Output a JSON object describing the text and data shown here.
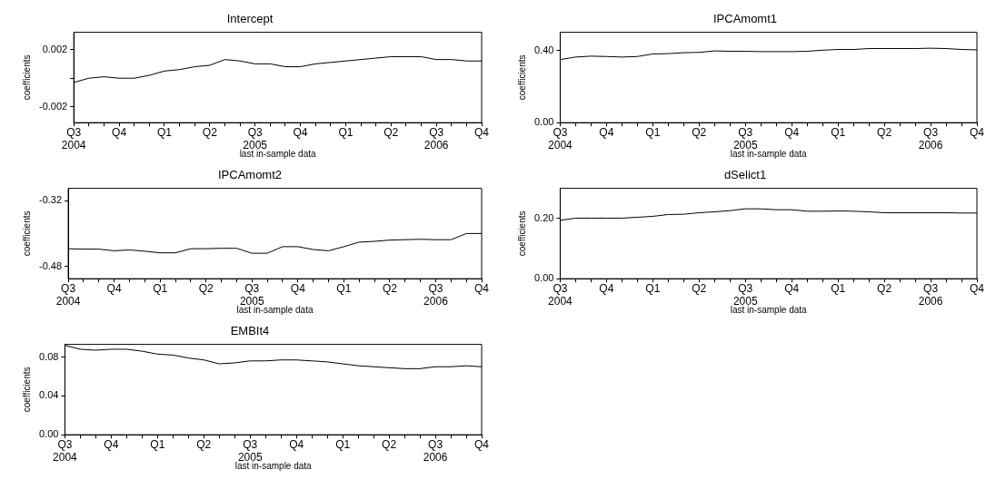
{
  "chart_data": [
    {
      "type": "line",
      "title": "Intercept",
      "xlabel": "last in-sample data",
      "ylabel": "coefficients",
      "color": "#000000",
      "grid": false,
      "x": [
        "2004-07",
        "2004-08",
        "2004-09",
        "2004-10",
        "2004-11",
        "2004-12",
        "2005-01",
        "2005-02",
        "2005-03",
        "2005-04",
        "2005-05",
        "2005-06",
        "2005-07",
        "2005-08",
        "2005-09",
        "2005-10",
        "2005-11",
        "2005-12",
        "2006-01",
        "2006-02",
        "2006-03",
        "2006-04",
        "2006-05",
        "2006-06",
        "2006-07",
        "2006-08",
        "2006-09",
        "2006-10"
      ],
      "values": [
        -0.0003,
        0.0,
        0.0001,
        0.0,
        0.0,
        0.0002,
        0.0005,
        0.0006,
        0.0008,
        0.0009,
        0.0013,
        0.0012,
        0.001,
        0.001,
        0.0008,
        0.0008,
        0.001,
        0.0011,
        0.0012,
        0.0013,
        0.0014,
        0.0015,
        0.0015,
        0.0015,
        0.0013,
        0.0013,
        0.0012,
        0.0012
      ],
      "xlim": [
        "2004-07",
        "2006-10"
      ],
      "ylim": [
        -0.0031,
        0.0032
      ],
      "yticks": [
        -0.002,
        {
          "value": 0,
          "label": null
        },
        0.002
      ],
      "xticks": [
        {
          "value": "2004-07",
          "label": "Q3\n2004"
        },
        {
          "value": "2004-08",
          "label": null
        },
        {
          "value": "2004-09",
          "label": null
        },
        {
          "value": "2004-10",
          "label": "Q4"
        },
        {
          "value": "2004-11",
          "label": null
        },
        {
          "value": "2004-12",
          "label": null
        },
        {
          "value": "2005-01",
          "label": "Q1"
        },
        {
          "value": "2005-02",
          "label": null
        },
        {
          "value": "2005-03",
          "label": null
        },
        {
          "value": "2005-04",
          "label": "Q2"
        },
        {
          "value": "2005-05",
          "label": null
        },
        {
          "value": "2005-06",
          "label": null
        },
        {
          "value": "2005-07",
          "label": "Q3\n2005"
        },
        {
          "value": "2005-08",
          "label": null
        },
        {
          "value": "2005-09",
          "label": null
        },
        {
          "value": "2005-10",
          "label": "Q4"
        },
        {
          "value": "2005-11",
          "label": null
        },
        {
          "value": "2005-12",
          "label": null
        },
        {
          "value": "2006-01",
          "label": "Q1"
        },
        {
          "value": "2006-02",
          "label": null
        },
        {
          "value": "2006-03",
          "label": null
        },
        {
          "value": "2006-04",
          "label": "Q2"
        },
        {
          "value": "2006-05",
          "label": null
        },
        {
          "value": "2006-06",
          "label": null
        },
        {
          "value": "2006-07",
          "label": "Q3\n2006"
        },
        {
          "value": "2006-08",
          "label": null
        },
        {
          "value": "2006-09",
          "label": null
        },
        {
          "value": "2006-10",
          "label": "Q4"
        }
      ]
    },
    {
      "type": "line",
      "title": "IPCAmomt1",
      "xlabel": "last in-sample data",
      "ylabel": "coefficients",
      "color": "#000000",
      "grid": false,
      "x": [
        "2004-07",
        "2004-08",
        "2004-09",
        "2004-10",
        "2004-11",
        "2004-12",
        "2005-01",
        "2005-02",
        "2005-03",
        "2005-04",
        "2005-05",
        "2005-06",
        "2005-07",
        "2005-08",
        "2005-09",
        "2005-10",
        "2005-11",
        "2005-12",
        "2006-01",
        "2006-02",
        "2006-03",
        "2006-04",
        "2006-05",
        "2006-06",
        "2006-07",
        "2006-08",
        "2006-09",
        "2006-10"
      ],
      "values": [
        0.349,
        0.363,
        0.368,
        0.366,
        0.363,
        0.366,
        0.38,
        0.382,
        0.387,
        0.389,
        0.397,
        0.395,
        0.395,
        0.393,
        0.393,
        0.393,
        0.395,
        0.401,
        0.405,
        0.405,
        0.41,
        0.41,
        0.41,
        0.41,
        0.412,
        0.41,
        0.405,
        0.403
      ],
      "xlim": [
        "2004-07",
        "2006-10"
      ],
      "ylim": [
        0,
        0.5
      ],
      "yticks": [
        {
          "value": 0,
          "label": "0.00"
        },
        {
          "value": 0.4,
          "label": "0.40"
        }
      ],
      "xticks": [
        {
          "value": "2004-07",
          "label": "Q3\n2004"
        },
        {
          "value": "2004-08",
          "label": null
        },
        {
          "value": "2004-09",
          "label": null
        },
        {
          "value": "2004-10",
          "label": "Q4"
        },
        {
          "value": "2004-11",
          "label": null
        },
        {
          "value": "2004-12",
          "label": null
        },
        {
          "value": "2005-01",
          "label": "Q1"
        },
        {
          "value": "2005-02",
          "label": null
        },
        {
          "value": "2005-03",
          "label": null
        },
        {
          "value": "2005-04",
          "label": "Q2"
        },
        {
          "value": "2005-05",
          "label": null
        },
        {
          "value": "2005-06",
          "label": null
        },
        {
          "value": "2005-07",
          "label": "Q3\n2005"
        },
        {
          "value": "2005-08",
          "label": null
        },
        {
          "value": "2005-09",
          "label": null
        },
        {
          "value": "2005-10",
          "label": "Q4"
        },
        {
          "value": "2005-11",
          "label": null
        },
        {
          "value": "2005-12",
          "label": null
        },
        {
          "value": "2006-01",
          "label": "Q1"
        },
        {
          "value": "2006-02",
          "label": null
        },
        {
          "value": "2006-03",
          "label": null
        },
        {
          "value": "2006-04",
          "label": "Q2"
        },
        {
          "value": "2006-05",
          "label": null
        },
        {
          "value": "2006-06",
          "label": null
        },
        {
          "value": "2006-07",
          "label": "Q3\n2006"
        },
        {
          "value": "2006-08",
          "label": null
        },
        {
          "value": "2006-09",
          "label": null
        },
        {
          "value": "2006-10",
          "label": "Q4"
        }
      ]
    },
    {
      "type": "line",
      "title": "IPCAmomt2",
      "xlabel": "last in-sample data",
      "ylabel": "coefficients",
      "color": "#000000",
      "grid": false,
      "x": [
        "2004-07",
        "2004-08",
        "2004-09",
        "2004-10",
        "2004-11",
        "2004-12",
        "2005-01",
        "2005-02",
        "2005-03",
        "2005-04",
        "2005-05",
        "2005-06",
        "2005-07",
        "2005-08",
        "2005-09",
        "2005-10",
        "2005-11",
        "2005-12",
        "2006-01",
        "2006-02",
        "2006-03",
        "2006-04",
        "2006-05",
        "2006-06",
        "2006-07",
        "2006-08",
        "2006-09",
        "2006-10"
      ],
      "values": [
        -0.437,
        -0.438,
        -0.438,
        -0.442,
        -0.44,
        -0.443,
        -0.447,
        -0.447,
        -0.437,
        -0.437,
        -0.436,
        -0.436,
        -0.448,
        -0.448,
        -0.432,
        -0.432,
        -0.439,
        -0.442,
        -0.432,
        -0.421,
        -0.419,
        -0.416,
        -0.415,
        -0.414,
        -0.415,
        -0.415,
        -0.4,
        -0.4
      ],
      "xlim": [
        "2004-07",
        "2006-10"
      ],
      "ylim": [
        -0.51,
        -0.29
      ],
      "yticks": [
        -0.48,
        -0.32
      ],
      "xticks": [
        {
          "value": "2004-07",
          "label": "Q3\n2004"
        },
        {
          "value": "2004-08",
          "label": null
        },
        {
          "value": "2004-09",
          "label": null
        },
        {
          "value": "2004-10",
          "label": "Q4"
        },
        {
          "value": "2004-11",
          "label": null
        },
        {
          "value": "2004-12",
          "label": null
        },
        {
          "value": "2005-01",
          "label": "Q1"
        },
        {
          "value": "2005-02",
          "label": null
        },
        {
          "value": "2005-03",
          "label": null
        },
        {
          "value": "2005-04",
          "label": "Q2"
        },
        {
          "value": "2005-05",
          "label": null
        },
        {
          "value": "2005-06",
          "label": null
        },
        {
          "value": "2005-07",
          "label": "Q3\n2005"
        },
        {
          "value": "2005-08",
          "label": null
        },
        {
          "value": "2005-09",
          "label": null
        },
        {
          "value": "2005-10",
          "label": "Q4"
        },
        {
          "value": "2005-11",
          "label": null
        },
        {
          "value": "2005-12",
          "label": null
        },
        {
          "value": "2006-01",
          "label": "Q1"
        },
        {
          "value": "2006-02",
          "label": null
        },
        {
          "value": "2006-03",
          "label": null
        },
        {
          "value": "2006-04",
          "label": "Q2"
        },
        {
          "value": "2006-05",
          "label": null
        },
        {
          "value": "2006-06",
          "label": null
        },
        {
          "value": "2006-07",
          "label": "Q3\n2006"
        },
        {
          "value": "2006-08",
          "label": null
        },
        {
          "value": "2006-09",
          "label": null
        },
        {
          "value": "2006-10",
          "label": "Q4"
        }
      ]
    },
    {
      "type": "line",
      "title": "dSelict1",
      "xlabel": "last in-sample data",
      "ylabel": "coefficients",
      "color": "#000000",
      "grid": false,
      "x": [
        "2004-07",
        "2004-08",
        "2004-09",
        "2004-10",
        "2004-11",
        "2004-12",
        "2005-01",
        "2005-02",
        "2005-03",
        "2005-04",
        "2005-05",
        "2005-06",
        "2005-07",
        "2005-08",
        "2005-09",
        "2005-10",
        "2005-11",
        "2005-12",
        "2006-01",
        "2006-02",
        "2006-03",
        "2006-04",
        "2006-05",
        "2006-06",
        "2006-07",
        "2006-08",
        "2006-09",
        "2006-10"
      ],
      "values": [
        0.194,
        0.201,
        0.201,
        0.201,
        0.201,
        0.204,
        0.207,
        0.213,
        0.214,
        0.219,
        0.222,
        0.226,
        0.232,
        0.232,
        0.229,
        0.229,
        0.224,
        0.224,
        0.225,
        0.224,
        0.222,
        0.219,
        0.219,
        0.219,
        0.219,
        0.219,
        0.218,
        0.218
      ],
      "xlim": [
        "2004-07",
        "2006-10"
      ],
      "ylim": [
        0,
        0.3
      ],
      "yticks": [
        {
          "value": 0,
          "label": "0.00"
        },
        {
          "value": 0.2,
          "label": "0.20"
        }
      ],
      "xticks": [
        {
          "value": "2004-07",
          "label": "Q3\n2004"
        },
        {
          "value": "2004-08",
          "label": null
        },
        {
          "value": "2004-09",
          "label": null
        },
        {
          "value": "2004-10",
          "label": "Q4"
        },
        {
          "value": "2004-11",
          "label": null
        },
        {
          "value": "2004-12",
          "label": null
        },
        {
          "value": "2005-01",
          "label": "Q1"
        },
        {
          "value": "2005-02",
          "label": null
        },
        {
          "value": "2005-03",
          "label": null
        },
        {
          "value": "2005-04",
          "label": "Q2"
        },
        {
          "value": "2005-05",
          "label": null
        },
        {
          "value": "2005-06",
          "label": null
        },
        {
          "value": "2005-07",
          "label": "Q3\n2005"
        },
        {
          "value": "2005-08",
          "label": null
        },
        {
          "value": "2005-09",
          "label": null
        },
        {
          "value": "2005-10",
          "label": "Q4"
        },
        {
          "value": "2005-11",
          "label": null
        },
        {
          "value": "2005-12",
          "label": null
        },
        {
          "value": "2006-01",
          "label": "Q1"
        },
        {
          "value": "2006-02",
          "label": null
        },
        {
          "value": "2006-03",
          "label": null
        },
        {
          "value": "2006-04",
          "label": "Q2"
        },
        {
          "value": "2006-05",
          "label": null
        },
        {
          "value": "2006-06",
          "label": null
        },
        {
          "value": "2006-07",
          "label": "Q3\n2006"
        },
        {
          "value": "2006-08",
          "label": null
        },
        {
          "value": "2006-09",
          "label": null
        },
        {
          "value": "2006-10",
          "label": "Q4"
        }
      ]
    },
    {
      "type": "line",
      "title": "EMBIt4",
      "xlabel": "last in-sample data",
      "ylabel": "coefficients",
      "color": "#000000",
      "grid": false,
      "x": [
        "2004-07",
        "2004-08",
        "2004-09",
        "2004-10",
        "2004-11",
        "2004-12",
        "2005-01",
        "2005-02",
        "2005-03",
        "2005-04",
        "2005-05",
        "2005-06",
        "2005-07",
        "2005-08",
        "2005-09",
        "2005-10",
        "2005-11",
        "2005-12",
        "2006-01",
        "2006-02",
        "2006-03",
        "2006-04",
        "2006-05",
        "2006-06",
        "2006-07",
        "2006-08",
        "2006-09",
        "2006-10"
      ],
      "values": [
        0.092,
        0.088,
        0.087,
        0.088,
        0.088,
        0.086,
        0.083,
        0.082,
        0.079,
        0.077,
        0.073,
        0.074,
        0.076,
        0.076,
        0.077,
        0.077,
        0.076,
        0.075,
        0.073,
        0.071,
        0.07,
        0.069,
        0.068,
        0.068,
        0.07,
        0.07,
        0.071,
        0.07
      ],
      "xlim": [
        "2004-07",
        "2006-10"
      ],
      "ylim": [
        0,
        0.093
      ],
      "yticks": [
        {
          "value": 0,
          "label": "0.00"
        },
        {
          "value": 0.04,
          "label": "0.04"
        },
        {
          "value": 0.08,
          "label": "0.08"
        }
      ],
      "xticks": [
        {
          "value": "2004-07",
          "label": "Q3\n2004"
        },
        {
          "value": "2004-08",
          "label": null
        },
        {
          "value": "2004-09",
          "label": null
        },
        {
          "value": "2004-10",
          "label": "Q4"
        },
        {
          "value": "2004-11",
          "label": null
        },
        {
          "value": "2004-12",
          "label": null
        },
        {
          "value": "2005-01",
          "label": "Q1"
        },
        {
          "value": "2005-02",
          "label": null
        },
        {
          "value": "2005-03",
          "label": null
        },
        {
          "value": "2005-04",
          "label": "Q2"
        },
        {
          "value": "2005-05",
          "label": null
        },
        {
          "value": "2005-06",
          "label": null
        },
        {
          "value": "2005-07",
          "label": "Q3\n2005"
        },
        {
          "value": "2005-08",
          "label": null
        },
        {
          "value": "2005-09",
          "label": null
        },
        {
          "value": "2005-10",
          "label": "Q4"
        },
        {
          "value": "2005-11",
          "label": null
        },
        {
          "value": "2005-12",
          "label": null
        },
        {
          "value": "2006-01",
          "label": "Q1"
        },
        {
          "value": "2006-02",
          "label": null
        },
        {
          "value": "2006-03",
          "label": null
        },
        {
          "value": "2006-04",
          "label": "Q2"
        },
        {
          "value": "2006-05",
          "label": null
        },
        {
          "value": "2006-06",
          "label": null
        },
        {
          "value": "2006-07",
          "label": "Q3\n2006"
        },
        {
          "value": "2006-08",
          "label": null
        },
        {
          "value": "2006-09",
          "label": null
        },
        {
          "value": "2006-10",
          "label": "Q4"
        }
      ]
    }
  ]
}
